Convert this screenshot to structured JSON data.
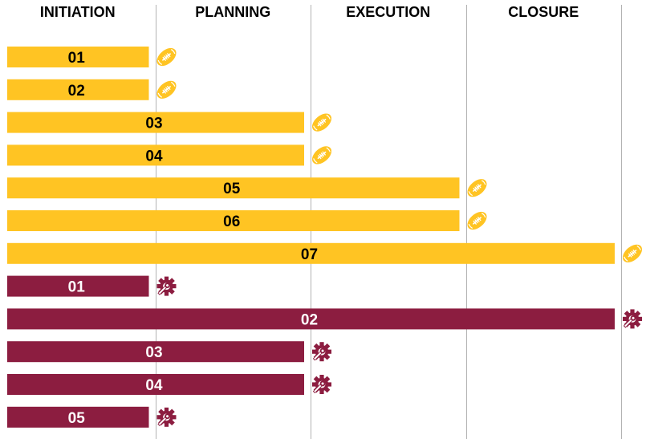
{
  "chart_data": {
    "type": "bar",
    "orientation": "horizontal",
    "phases": [
      "INITIATION",
      "PLANNING",
      "EXECUTION",
      "CLOSURE"
    ],
    "x_unit": "phase",
    "xlim": [
      0,
      4
    ],
    "grid": true,
    "legend": "none",
    "colors": {
      "gold": "#FFC423",
      "maroon": "#8C1D40",
      "grid": "#b3b3b3",
      "text": "#000000"
    },
    "series": [
      {
        "color": "#FFC423",
        "label_color": "#000000",
        "icon": "football-icon",
        "bars": [
          {
            "label": "01",
            "end_phase": 1
          },
          {
            "label": "02",
            "end_phase": 1
          },
          {
            "label": "03",
            "end_phase": 2
          },
          {
            "label": "04",
            "end_phase": 2
          },
          {
            "label": "05",
            "end_phase": 3
          },
          {
            "label": "06",
            "end_phase": 3
          },
          {
            "label": "07",
            "end_phase": 4
          }
        ]
      },
      {
        "color": "#8C1D40",
        "label_color": "#ffffff",
        "icon": "gear-wrench-icon",
        "bars": [
          {
            "label": "01",
            "end_phase": 1
          },
          {
            "label": "02",
            "end_phase": 4
          },
          {
            "label": "03",
            "end_phase": 2
          },
          {
            "label": "04",
            "end_phase": 2
          },
          {
            "label": "05",
            "end_phase": 1
          }
        ]
      }
    ]
  }
}
